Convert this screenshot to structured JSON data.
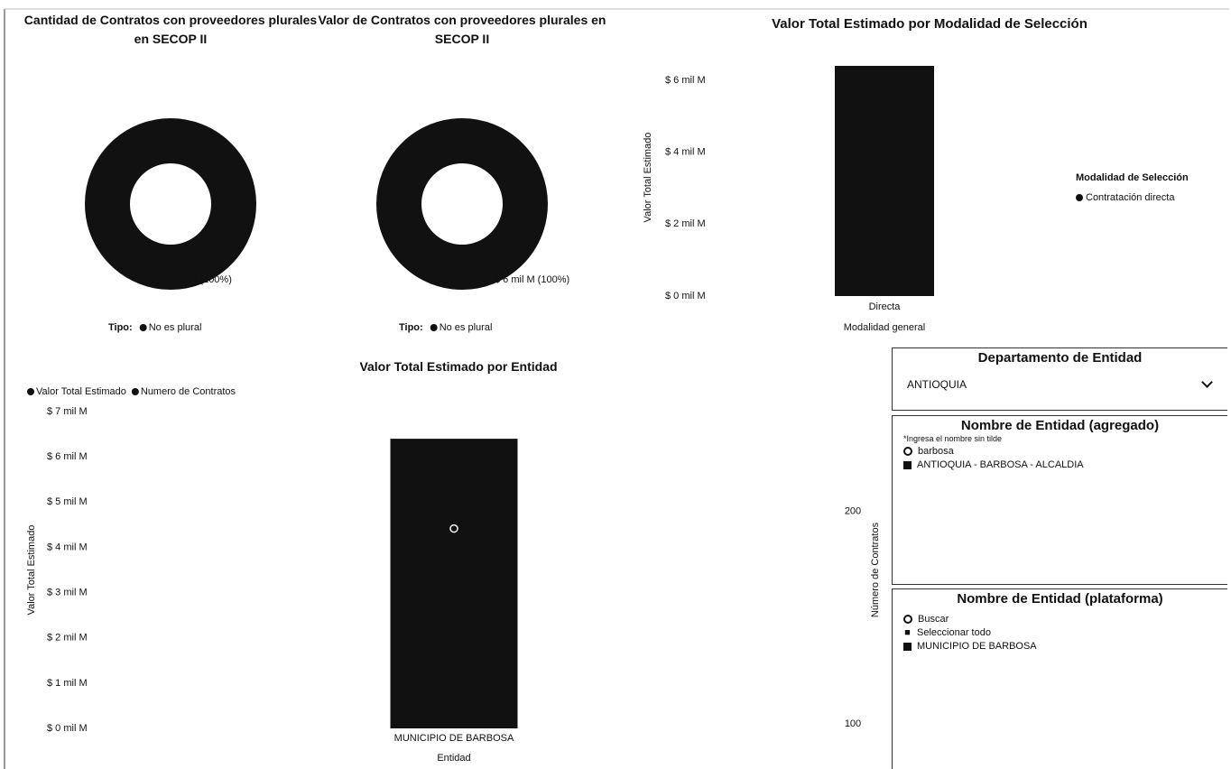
{
  "chart_data": [
    {
      "type": "donut",
      "title": "Cantidad de Contratos con proveedores plurales en SECOP II",
      "categories": [
        "No es plural"
      ],
      "values": [
        192
      ],
      "value_labels": [
        "192 (100%)"
      ],
      "legend_title": "Tipo:",
      "color": "#111111"
    },
    {
      "type": "donut",
      "title": "Valor de Contratos con proveedores plurales en SECOP II",
      "categories": [
        "No es plural"
      ],
      "values": [
        6.4
      ],
      "value_labels": [
        "$ 6 mil M (100%)"
      ],
      "legend_title": "Tipo:",
      "color": "#111111"
    },
    {
      "type": "bar",
      "title": "Valor Total Estimado por Modalidad de Selección",
      "x_label": "Modalidad general",
      "y_label": "Valor Total Estimado",
      "categories": [
        "Directa"
      ],
      "series": [
        {
          "name": "Contratación directa",
          "color": "#111111",
          "values": [
            6.4
          ]
        }
      ],
      "legend_title": "Modalidad de Selección",
      "ylim": [
        0,
        6.6
      ],
      "yticks": [
        {
          "value": 0,
          "label": "$ 0 mil M"
        },
        {
          "value": 2,
          "label": "$ 2 mil M"
        },
        {
          "value": 4,
          "label": "$ 4 mil M"
        },
        {
          "value": 6,
          "label": "$ 6 mil M"
        }
      ]
    },
    {
      "type": "combo",
      "title": "Valor Total Estimado por Entidad",
      "x_label": "Entidad",
      "y_label": "Valor Total Estimado",
      "y2_label": "Número de Contratos",
      "categories": [
        "MUNICIPIO DE BARBOSA"
      ],
      "series": [
        {
          "name": "Valor Total Estimado",
          "color": "#111111",
          "values": [
            6.4
          ]
        },
        {
          "name": "Numero de Contratos",
          "color": "#111111",
          "values": [
            192
          ],
          "axis": "y2"
        }
      ],
      "ylim": [
        0,
        7
      ],
      "yticks": [
        {
          "value": 0,
          "label": "$ 0 mil M"
        },
        {
          "value": 1,
          "label": "$ 1 mil M"
        },
        {
          "value": 2,
          "label": "$ 2 mil M"
        },
        {
          "value": 3,
          "label": "$ 3 mil M"
        },
        {
          "value": 4,
          "label": "$ 4 mil M"
        },
        {
          "value": 5,
          "label": "$ 5 mil M"
        },
        {
          "value": 6,
          "label": "$ 6 mil M"
        },
        {
          "value": 7,
          "label": "$ 7 mil M"
        }
      ],
      "y2lim": [
        98,
        247
      ],
      "y2ticks": [
        100,
        200
      ]
    }
  ],
  "slicers": [
    {
      "title": "Departamento de Entidad",
      "selected": "ANTIOQUIA"
    },
    {
      "title": "Nombre de Entidad (agregado)",
      "hint": "*Ingresa el nombre sin tilde",
      "search": "barbosa",
      "items": [
        "ANTIOQUIA - BARBOSA - ALCALDIA"
      ]
    },
    {
      "title": "Nombre de Entidad (plataforma)",
      "search": "Buscar",
      "items": [
        "Seleccionar todo",
        "MUNICIPIO DE BARBOSA"
      ]
    }
  ]
}
